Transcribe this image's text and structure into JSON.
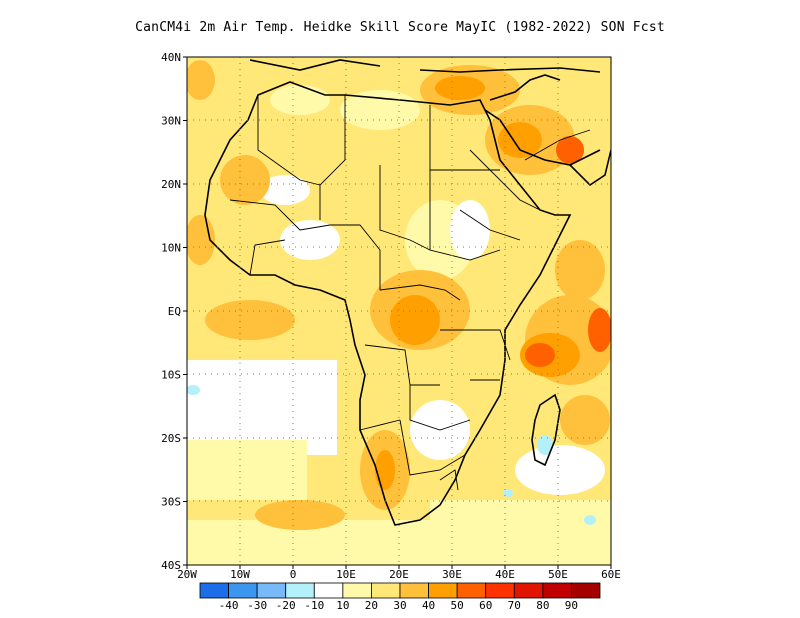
{
  "title": "CanCM4i 2m Air Temp. Heidke Skill Score MayIC (1982-2022) SON Fcst",
  "map": {
    "lat_labels": [
      "40N",
      "30N",
      "20N",
      "10N",
      "EQ",
      "10S",
      "20S",
      "30S",
      "40S"
    ],
    "lon_labels": [
      "20W",
      "10W",
      "0",
      "10E",
      "20E",
      "30E",
      "40E",
      "50E",
      "60E"
    ],
    "lon_range": [
      -20,
      60
    ],
    "lat_range": [
      -40,
      40
    ]
  },
  "colorbar": {
    "labels": [
      "-40",
      "-30",
      "-20",
      "-10",
      "10",
      "20",
      "30",
      "40",
      "50",
      "60",
      "70",
      "80",
      "90"
    ],
    "colors": [
      "#1c6ee8",
      "#3c96f0",
      "#78b9fa",
      "#b4f0fa",
      "#ffffff",
      "#fffaaa",
      "#ffe878",
      "#ffc03c",
      "#ffa000",
      "#ff6000",
      "#ff3200",
      "#e11400",
      "#c00000",
      "#a50000"
    ]
  }
}
